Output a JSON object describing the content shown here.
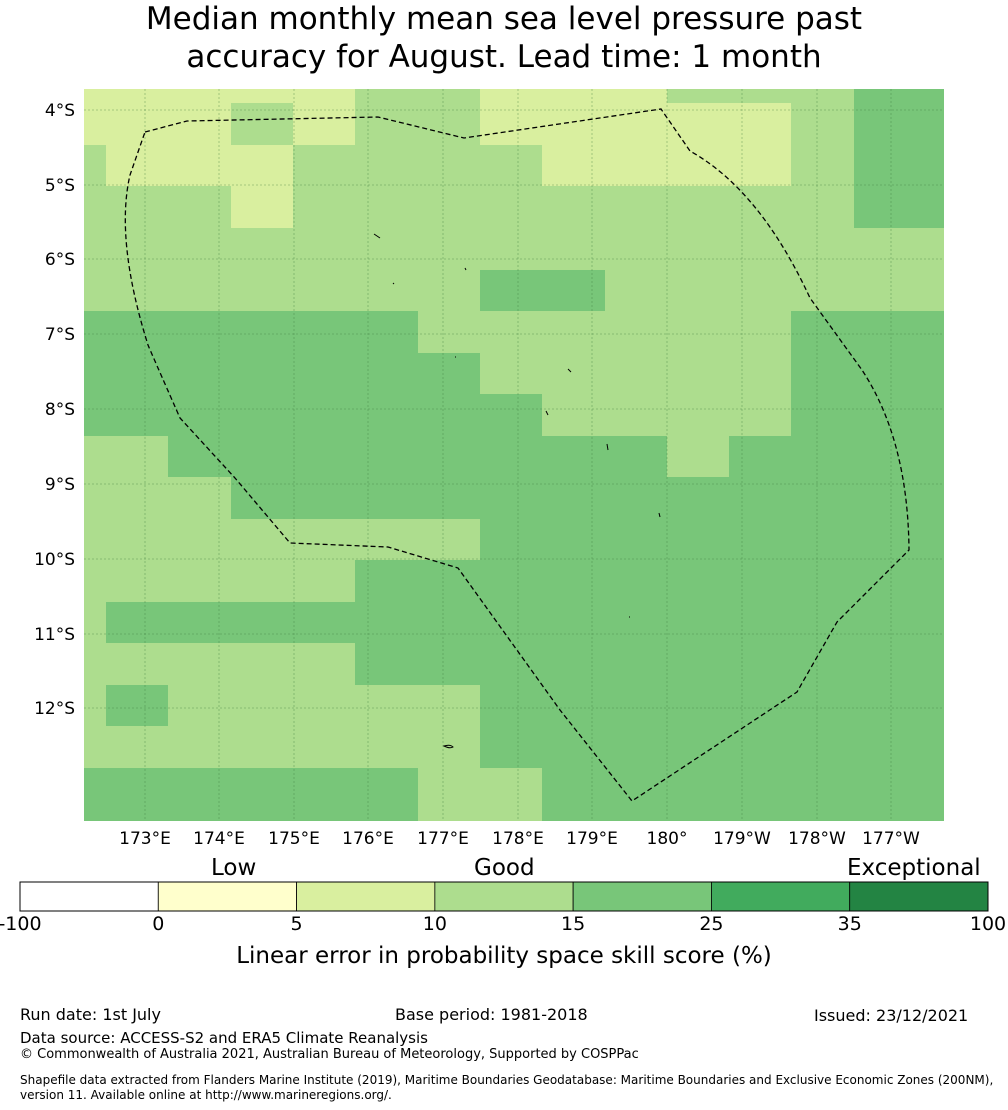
{
  "title": {
    "line1": "Median monthly mean sea level pressure past",
    "line2": "accuracy for August. Lead time: 1 month"
  },
  "map": {
    "lat_ticks": [
      "4°S",
      "5°S",
      "6°S",
      "7°S",
      "8°S",
      "9°S",
      "10°S",
      "11°S",
      "12°S"
    ],
    "lon_ticks": [
      "173°E",
      "174°E",
      "175°E",
      "176°E",
      "177°E",
      "178°E",
      "179°E",
      "180°",
      "179°W",
      "178°W",
      "177°W"
    ],
    "colors": {
      "5_10": "#d9ef9f",
      "10_15": "#addd8e",
      "15_25": "#78c679"
    },
    "skill_grid_categories": [
      "AAAAA AAAABBBBB AABBBBBBBBBBCCC",
      "ABBBBBAA ABBBBBBAAAA AAAAAABCCC",
      "BBBAA AABBBBBBBB AAAAAAAAAABCCC",
      "BBBBBAABBBBBBBBBBBBBBBBBBBBCCC",
      "BBBBBBBBBBBBBBBBBBBBBBBBBBBBBB",
      "BBBBBBBBBBBBBBBBBCCCCCCBBBBBBB",
      "CCCCCCCCCCCCCCCCBBBBBBBBBBBCCC"
    ]
  },
  "colorbar": {
    "categories": [
      "Low",
      "Good",
      "Exceptional"
    ],
    "ticks": [
      "-100",
      "0",
      "5",
      "10",
      "15",
      "25",
      "35",
      "100"
    ],
    "colors": [
      "#ffffff",
      "#ffffcc",
      "#d9ef9f",
      "#addd8e",
      "#78c679",
      "#41ab5d",
      "#238443"
    ],
    "label": "Linear error in probability space skill score (%)"
  },
  "footer": {
    "run_date": "Run date: 1st July",
    "base_period": "Base period: 1981-2018",
    "issued": "Issued: 23/12/2021",
    "data_source": "Data source: ACCESS-S2 and ERA5 Climate Reanalysis",
    "copyright": "© Commonwealth of Australia 2021, Australian Bureau of Meteorology, Supported by COSPPac",
    "shapefile_line1": "Shapefile data extracted from Flanders Marine Institute (2019), Maritime Boundaries Geodatabase: Maritime Boundaries and Exclusive Economic Zones (200NM),",
    "shapefile_line2": "version 11. Available online at http://www.marineregions.org/."
  }
}
